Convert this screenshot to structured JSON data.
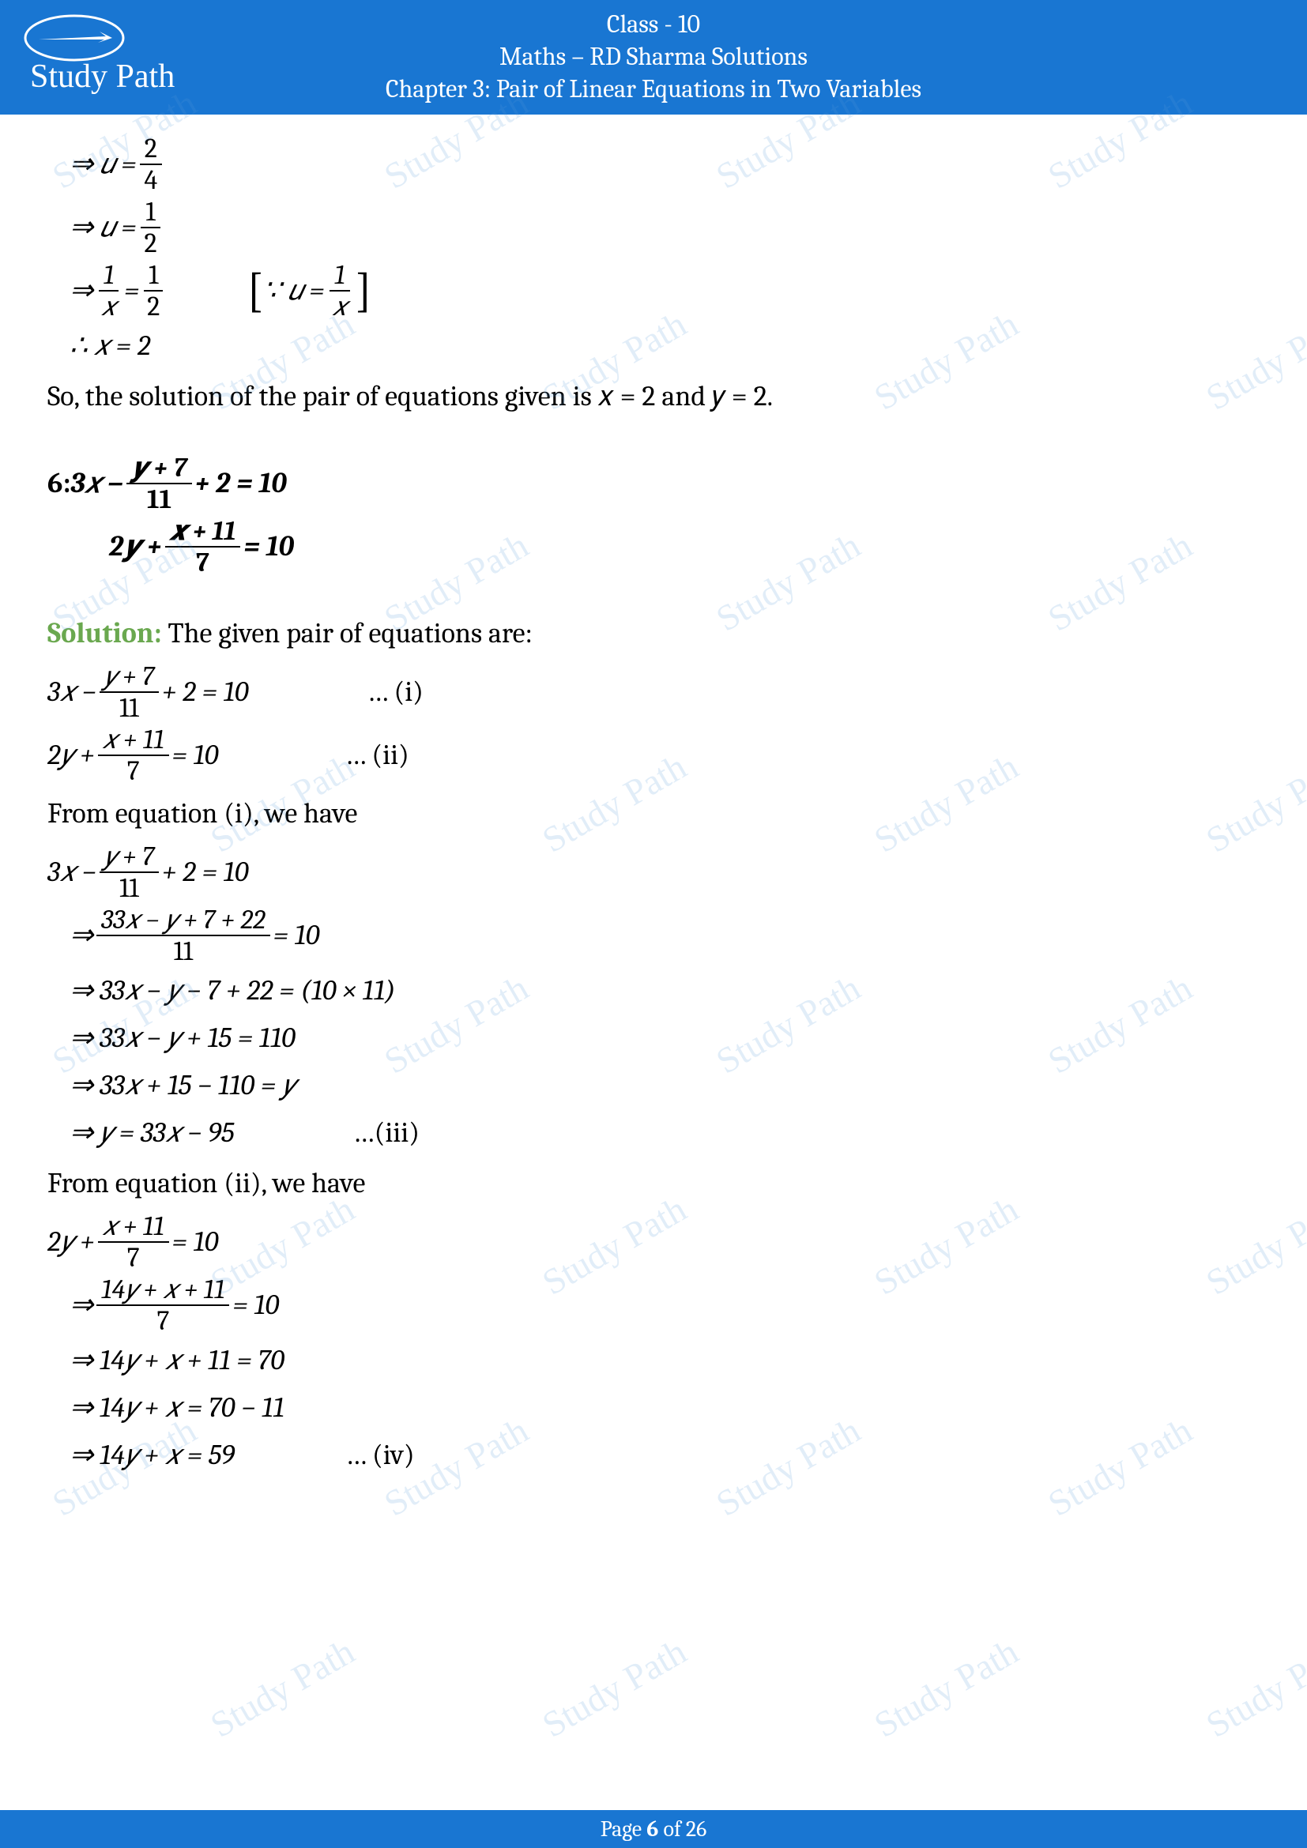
{
  "header": {
    "line1": "Class - 10",
    "line2": "Maths – RD Sharma Solutions",
    "line3": "Chapter 3: Pair of Linear Equations in Two Variables",
    "bg_color": "#1976d2",
    "text_color": "#ffffff",
    "font_size": 32
  },
  "logo": {
    "text": "Study Path",
    "color": "#ffffff"
  },
  "colors": {
    "page_bg": "#ffffff",
    "body_text": "#000000",
    "solution_label": "#6aa84f",
    "watermark": "rgba(86,156,214,0.18)"
  },
  "watermark_text": "Study Path",
  "footer": {
    "prefix": "Page ",
    "page_num": "6",
    "middle": " of ",
    "total": "26"
  },
  "body": {
    "l1_lhs": "⇒ 𝑢 =",
    "l1_num": "2",
    "l1_den": "4",
    "l2_lhs": "⇒ 𝑢 =",
    "l2_num": "1",
    "l2_den": "2",
    "l3_pre": "⇒ ",
    "l3_num1": "1",
    "l3_den1": "𝑥",
    "l3_mid": " = ",
    "l3_num2": "1",
    "l3_den2": "2",
    "l3_note_pre": "∵ 𝑢 = ",
    "l3_note_num": "1",
    "l3_note_den": "𝑥",
    "l4": "∴ 𝑥 = 2",
    "l5": "So, the solution of the pair of equations given is 𝑥 = 2 and 𝑦 = 2.",
    "q_label": "6:  ",
    "q1_pre": "3𝑥 − ",
    "q1_num": "𝒚 + 7",
    "q1_den": "11",
    "q1_post": " + 2 = 10",
    "q2_pre": "2𝒚 + ",
    "q2_num": "𝒙 + 11",
    "q2_den": "7",
    "q2_post": "  = 10",
    "sol_label": "Solution:",
    "sol_intro": " The given pair of equations are:",
    "e1_pre": "3𝑥 − ",
    "e1_num": "𝑦 + 7",
    "e1_den": "11",
    "e1_post": " + 2 = 10",
    "e1_tag": "… (i)",
    "e2_pre": "2𝑦 + ",
    "e2_num": "𝑥 + 11",
    "e2_den": "7",
    "e2_post": "  = 10",
    "e2_tag": "… (ii)",
    "from_i": "From equation (i), we have",
    "s1_pre": "3𝑥 − ",
    "s1_num": "𝑦 + 7",
    "s1_den": "11",
    "s1_post": " + 2 = 10",
    "s2_pre": "⇒ ",
    "s2_num": "33𝑥 − 𝑦 + 7 + 22",
    "s2_den": "11",
    "s2_post": " = 10",
    "s3": "⇒ 33𝑥 − 𝑦 − 7 + 22 = (10 × 11)",
    "s4": "⇒ 33𝑥 − 𝑦 + 15 = 110",
    "s5": "⇒ 33𝑥 + 15 − 110 = 𝑦",
    "s6": "⇒ 𝑦 = 33𝑥 − 95",
    "s6_tag": "…(iii)",
    "from_ii": "From equation (ii), we have",
    "t1_pre": "2𝑦 + ",
    "t1_num": "𝑥 + 11",
    "t1_den": "7",
    "t1_post": "  = 10",
    "t2_pre": "⇒ ",
    "t2_num": "14𝑦 + 𝑥 + 11",
    "t2_den": "7",
    "t2_post": "  = 10",
    "t3": "⇒ 14𝑦 + 𝑥 + 11 = 70",
    "t4": "⇒ 14𝑦 + 𝑥 = 70 − 11",
    "t5": "⇒ 14𝑦 + 𝑥 = 59",
    "t5_tag": "… (iv)"
  }
}
